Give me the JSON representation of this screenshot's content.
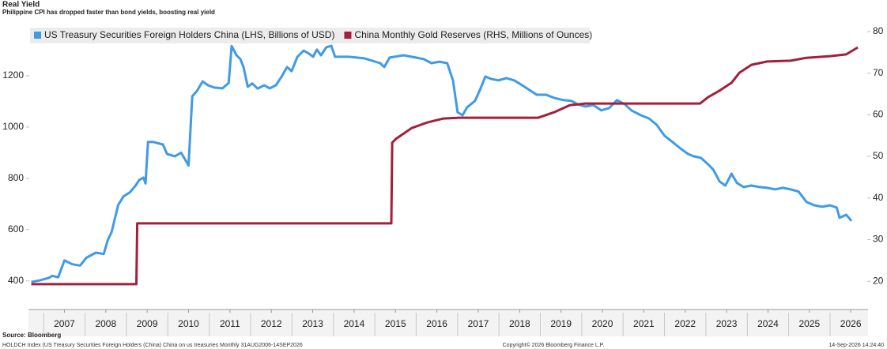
{
  "chart_data": {
    "type": "line",
    "title": "Real Yield",
    "subtitle": "Philippine CPI has dropped faster than bond yields, boosting real yield",
    "source": "Source: Bloomberg",
    "footer_left": "HOLDCH Index (US Treasury Securities Foreign Holders (China) China on us treasuries Monthly 31AUG2006-14SEP2026",
    "footer_center": "Copyright© 2026 Bloomberg Finance L.P.",
    "footer_right": "14-Sep-2026 14:24:40",
    "legend": "top-left",
    "grid": false,
    "xlim": [
      2006.67,
      2026.86
    ],
    "xticks": [
      {
        "value": 2007.5,
        "label": "2007"
      },
      {
        "value": 2008.5,
        "label": "2008"
      },
      {
        "value": 2009.5,
        "label": "2009"
      },
      {
        "value": 2010.5,
        "label": "2010"
      },
      {
        "value": 2011.5,
        "label": "2011"
      },
      {
        "value": 2012.5,
        "label": "2012"
      },
      {
        "value": 2013.5,
        "label": "2013"
      },
      {
        "value": 2014.5,
        "label": "2014"
      },
      {
        "value": 2015.5,
        "label": "2015"
      },
      {
        "value": 2016.5,
        "label": "2016"
      },
      {
        "value": 2017.5,
        "label": "2017"
      },
      {
        "value": 2018.5,
        "label": "2018"
      },
      {
        "value": 2019.5,
        "label": "2019"
      },
      {
        "value": 2020.5,
        "label": "2020"
      },
      {
        "value": 2021.5,
        "label": "2021"
      },
      {
        "value": 2022.5,
        "label": "2022"
      },
      {
        "value": 2023.5,
        "label": "2023"
      },
      {
        "value": 2024.5,
        "label": "2024"
      },
      {
        "value": 2025.5,
        "label": "2025"
      },
      {
        "value": 2026.5,
        "label": "2026"
      }
    ],
    "ylim": [
      350,
      1400
    ],
    "yticks": [
      400,
      600,
      800,
      1000,
      1200
    ],
    "y2lim": [
      17,
      81.7
    ],
    "y2ticks": [
      20,
      30,
      40,
      50,
      60,
      70,
      80
    ],
    "series": [
      {
        "name": "US Treasury Securities Foreign Holders China (LHS, Billions of USD)",
        "color": "#3e9be6",
        "axis": "y",
        "x": [
          2006.7,
          2006.93,
          2007.12,
          2007.21,
          2007.35,
          2007.5,
          2007.69,
          2007.88,
          2008.03,
          2008.26,
          2008.45,
          2008.55,
          2008.64,
          2008.8,
          2008.93,
          2009.08,
          2009.22,
          2009.31,
          2009.41,
          2009.46,
          2009.52,
          2009.64,
          2009.88,
          2009.98,
          2010.17,
          2010.32,
          2010.5,
          2010.59,
          2010.7,
          2010.84,
          2010.97,
          2011.12,
          2011.32,
          2011.47,
          2011.54,
          2011.66,
          2011.75,
          2011.83,
          2011.93,
          2012.04,
          2012.17,
          2012.33,
          2012.46,
          2012.61,
          2012.75,
          2012.88,
          2012.99,
          2013.13,
          2013.28,
          2013.41,
          2013.51,
          2013.6,
          2013.7,
          2013.83,
          2013.95,
          2014.04,
          2014.37,
          2014.75,
          2015.13,
          2015.23,
          2015.36,
          2015.7,
          2015.99,
          2016.18,
          2016.37,
          2016.56,
          2016.75,
          2016.89,
          2017.0,
          2017.12,
          2017.23,
          2017.42,
          2017.55,
          2017.67,
          2017.8,
          2017.99,
          2018.18,
          2018.37,
          2018.56,
          2018.76,
          2018.91,
          2019.14,
          2019.33,
          2019.56,
          2019.75,
          2019.9,
          2020.09,
          2020.28,
          2020.47,
          2020.66,
          2020.85,
          2021.04,
          2021.2,
          2021.43,
          2021.62,
          2021.81,
          2022.0,
          2022.19,
          2022.38,
          2022.57,
          2022.7,
          2022.88,
          2023.05,
          2023.18,
          2023.33,
          2023.47,
          2023.62,
          2023.75,
          2023.91,
          2024.1,
          2024.29,
          2024.48,
          2024.67,
          2024.86,
          2025.05,
          2025.24,
          2025.43,
          2025.62,
          2025.81,
          2026.0,
          2026.16,
          2026.23,
          2026.39,
          2026.52
        ],
        "values": [
          396,
          403,
          412,
          420,
          414,
          480,
          465,
          460,
          490,
          510,
          505,
          560,
          590,
          696,
          730,
          745,
          772,
          794,
          803,
          780,
          942,
          942,
          932,
          895,
          886,
          900,
          850,
          1120,
          1140,
          1178,
          1163,
          1154,
          1151,
          1172,
          1316,
          1280,
          1265,
          1233,
          1157,
          1170,
          1150,
          1163,
          1151,
          1163,
          1197,
          1234,
          1218,
          1274,
          1298,
          1286,
          1274,
          1302,
          1280,
          1311,
          1317,
          1274,
          1274,
          1268,
          1249,
          1234,
          1271,
          1280,
          1271,
          1265,
          1249,
          1255,
          1249,
          1182,
          1058,
          1046,
          1077,
          1102,
          1148,
          1197,
          1188,
          1182,
          1191,
          1182,
          1163,
          1142,
          1126,
          1126,
          1114,
          1105,
          1102,
          1089,
          1080,
          1086,
          1065,
          1074,
          1105,
          1089,
          1065,
          1046,
          1034,
          1009,
          966,
          942,
          917,
          895,
          886,
          880,
          855,
          834,
          788,
          772,
          818,
          782,
          766,
          772,
          766,
          763,
          757,
          763,
          757,
          748,
          708,
          695,
          689,
          695,
          686,
          646,
          658,
          634
        ]
      },
      {
        "name": "China Monthly Gold Reserves (RHS, Millions of Ounces)",
        "color": "#a31f3a",
        "axis": "y2",
        "x": [
          2006.7,
          2009.24,
          2009.26,
          2015.4,
          2015.42,
          2015.51,
          2015.89,
          2016.28,
          2016.66,
          2017.04,
          2018.95,
          2019.33,
          2019.71,
          2020.09,
          2022.86,
          2023.05,
          2023.33,
          2023.62,
          2023.81,
          2024.1,
          2024.48,
          2025.05,
          2025.43,
          2026.0,
          2026.39,
          2026.67
        ],
        "values": [
          19.3,
          19.3,
          33.9,
          33.9,
          53.3,
          54.2,
          56.8,
          58.2,
          59.1,
          59.3,
          59.3,
          60.6,
          62.3,
          62.7,
          62.7,
          64.2,
          65.8,
          67.7,
          70.1,
          72.0,
          72.8,
          73.0,
          73.7,
          74.1,
          74.5,
          76.2
        ]
      }
    ]
  }
}
